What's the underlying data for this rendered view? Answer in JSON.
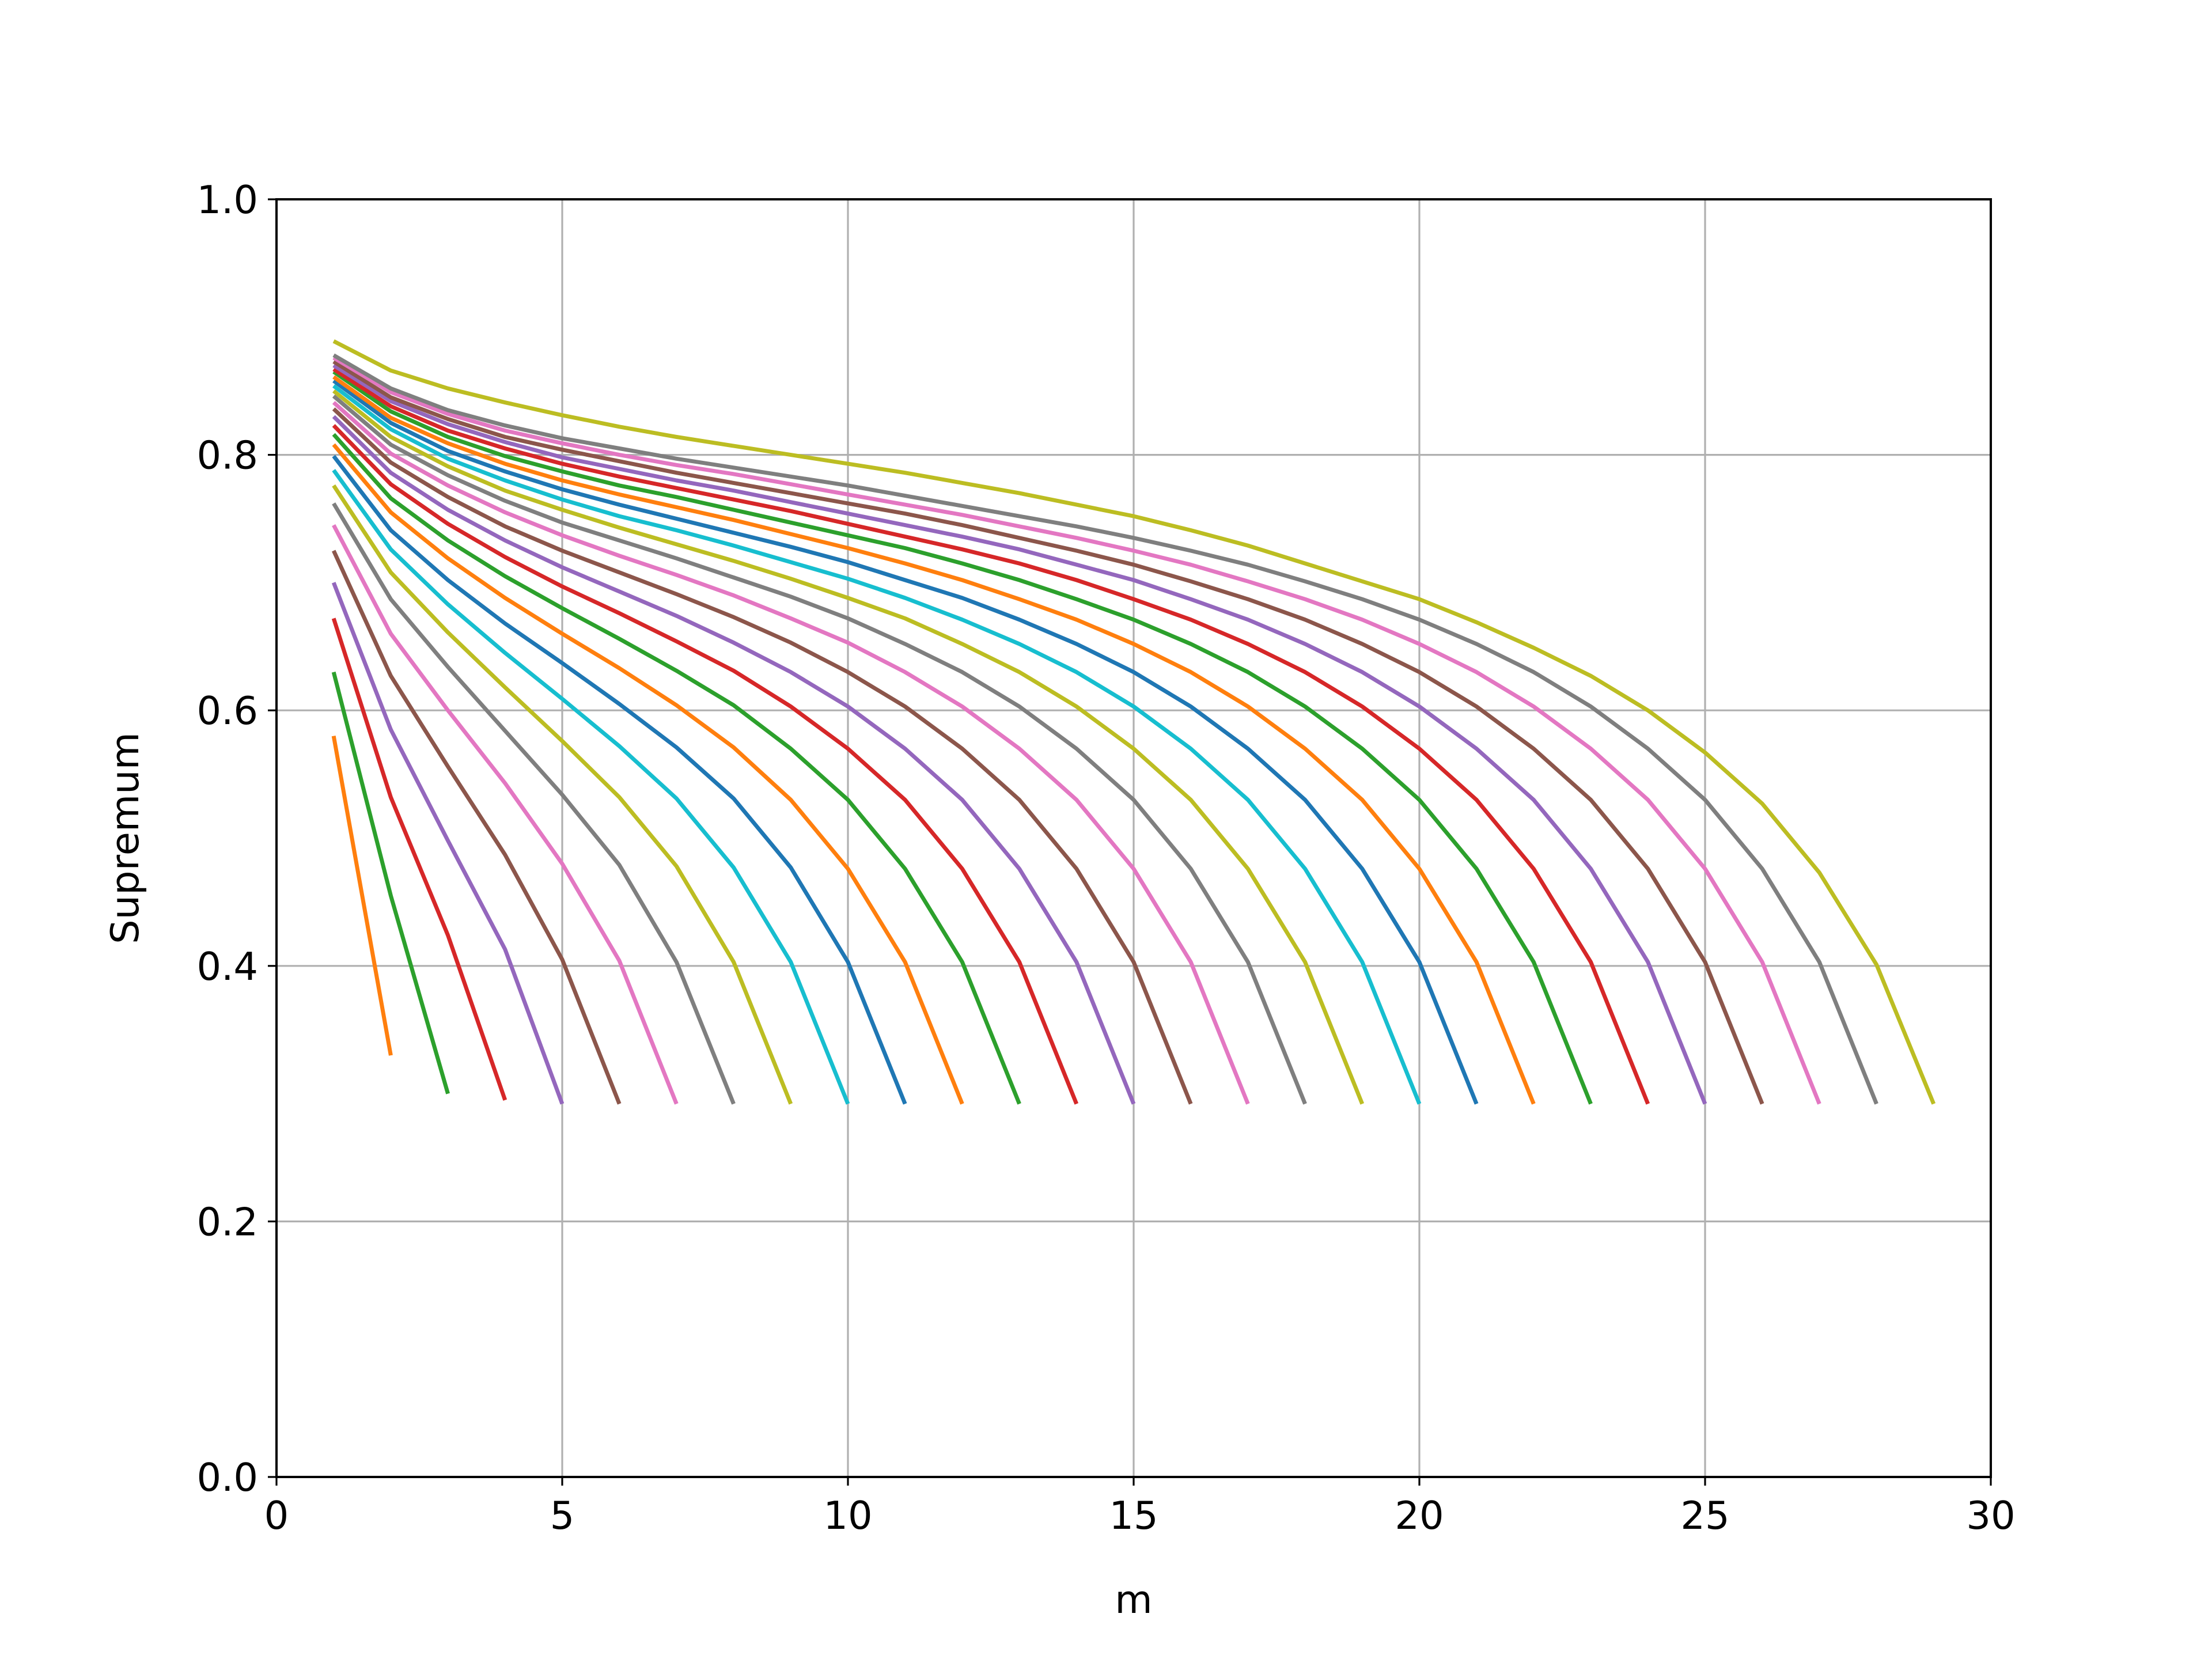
{
  "chart_data": {
    "type": "line",
    "title": "",
    "xlabel": "m",
    "ylabel": "Supremum",
    "xlim": [
      0,
      30
    ],
    "ylim": [
      0.0,
      1.0
    ],
    "xticks": [
      "0",
      "5",
      "10",
      "15",
      "20",
      "25",
      "30"
    ],
    "yticks": [
      "0.0",
      "0.2",
      "0.4",
      "0.6",
      "0.8",
      "1.0"
    ],
    "grid": true,
    "legend": "none",
    "colors": [
      "#1f77b4",
      "#ff7f0e",
      "#2ca02c",
      "#d62728",
      "#9467bd",
      "#8c564b",
      "#e377c2",
      "#7f7f7f",
      "#bcbd22",
      "#17becf"
    ],
    "series": [
      {
        "x": [
          1,
          2
        ],
        "y": [
          0.58,
          0.33
        ],
        "color": "#ff7f0e"
      },
      {
        "x": [
          1,
          2,
          3
        ],
        "y": [
          0.63,
          0.455,
          0.3
        ],
        "color": "#2ca02c"
      },
      {
        "x": [
          1,
          2,
          3,
          4
        ],
        "y": [
          0.672,
          0.532,
          0.424,
          0.295
        ],
        "color": "#d62728"
      },
      {
        "x": [
          1,
          2,
          3,
          4,
          5
        ],
        "y": [
          0.7,
          0.585,
          0.498,
          0.413,
          0.292
        ],
        "color": "#9467bd"
      },
      {
        "x": [
          1,
          2,
          3,
          4,
          5,
          6
        ],
        "y": [
          0.725,
          0.627,
          0.556,
          0.487,
          0.405,
          0.292
        ],
        "color": "#8c564b"
      },
      {
        "x": [
          1,
          2,
          3,
          4,
          5,
          6,
          7
        ],
        "y": [
          0.745,
          0.66,
          0.6,
          0.543,
          0.48,
          0.404,
          0.292
        ],
        "color": "#e377c2"
      },
      {
        "x": [
          1,
          2,
          3,
          4,
          5,
          6,
          7,
          8
        ],
        "y": [
          0.762,
          0.687,
          0.634,
          0.584,
          0.534,
          0.479,
          0.403,
          0.292
        ],
        "color": "#7f7f7f"
      },
      {
        "x": [
          1,
          2,
          3,
          4,
          5,
          6,
          7,
          8,
          9
        ],
        "y": [
          0.776,
          0.708,
          0.661,
          0.618,
          0.576,
          0.532,
          0.478,
          0.403,
          0.292
        ],
        "color": "#bcbd22"
      },
      {
        "x": [
          1,
          2,
          3,
          4,
          5,
          6,
          7,
          8,
          9,
          10
        ],
        "y": [
          0.788,
          0.726,
          0.683,
          0.645,
          0.609,
          0.572,
          0.531,
          0.477,
          0.403,
          0.292
        ],
        "color": "#17becf"
      },
      {
        "x": [
          1,
          2,
          3,
          4,
          5,
          6,
          7,
          8,
          9,
          10,
          11
        ],
        "y": [
          0.799,
          0.741,
          0.702,
          0.668,
          0.637,
          0.605,
          0.571,
          0.531,
          0.477,
          0.403,
          0.292
        ],
        "color": "#1f77b4"
      },
      {
        "x": [
          1,
          2,
          3,
          4,
          5,
          6,
          7,
          8,
          9,
          10,
          11,
          12
        ],
        "y": [
          0.808,
          0.755,
          0.719,
          0.688,
          0.66,
          0.633,
          0.604,
          0.571,
          0.53,
          0.476,
          0.403,
          0.292
        ],
        "color": "#ff7f0e"
      },
      {
        "x": [
          1,
          2,
          3,
          4,
          5,
          6,
          7,
          8,
          9,
          10,
          11,
          12,
          13
        ],
        "y": [
          0.816,
          0.766,
          0.733,
          0.705,
          0.68,
          0.656,
          0.631,
          0.604,
          0.57,
          0.53,
          0.476,
          0.403,
          0.292
        ],
        "color": "#2ca02c"
      },
      {
        "x": [
          1,
          2,
          3,
          4,
          5,
          6,
          7,
          8,
          9,
          10,
          11,
          12,
          13,
          14
        ],
        "y": [
          0.823,
          0.777,
          0.746,
          0.72,
          0.697,
          0.676,
          0.654,
          0.631,
          0.603,
          0.57,
          0.53,
          0.476,
          0.403,
          0.292
        ],
        "color": "#d62728"
      },
      {
        "x": [
          1,
          2,
          3,
          4,
          5,
          6,
          7,
          8,
          9,
          10,
          11,
          12,
          13,
          14,
          15
        ],
        "y": [
          0.83,
          0.786,
          0.757,
          0.733,
          0.712,
          0.693,
          0.674,
          0.653,
          0.63,
          0.603,
          0.57,
          0.53,
          0.476,
          0.403,
          0.292
        ],
        "color": "#9467bd"
      },
      {
        "x": [
          1,
          2,
          3,
          4,
          5,
          6,
          7,
          8,
          9,
          10,
          11,
          12,
          13,
          14,
          15,
          16
        ],
        "y": [
          0.836,
          0.794,
          0.767,
          0.744,
          0.725,
          0.708,
          0.691,
          0.673,
          0.653,
          0.63,
          0.603,
          0.57,
          0.53,
          0.476,
          0.403,
          0.292
        ],
        "color": "#8c564b"
      },
      {
        "x": [
          1,
          2,
          3,
          4,
          5,
          6,
          7,
          8,
          9,
          10,
          11,
          12,
          13,
          14,
          15,
          16,
          17
        ],
        "y": [
          0.841,
          0.801,
          0.776,
          0.755,
          0.737,
          0.721,
          0.706,
          0.69,
          0.672,
          0.653,
          0.63,
          0.603,
          0.57,
          0.53,
          0.476,
          0.403,
          0.292
        ],
        "color": "#e377c2"
      },
      {
        "x": [
          1,
          2,
          3,
          4,
          5,
          6,
          7,
          8,
          9,
          10,
          11,
          12,
          13,
          14,
          15,
          16,
          17,
          18
        ],
        "y": [
          0.846,
          0.808,
          0.784,
          0.764,
          0.747,
          0.733,
          0.719,
          0.704,
          0.689,
          0.672,
          0.652,
          0.63,
          0.603,
          0.57,
          0.53,
          0.476,
          0.403,
          0.292
        ],
        "color": "#7f7f7f"
      },
      {
        "x": [
          1,
          2,
          3,
          4,
          5,
          6,
          7,
          8,
          9,
          10,
          11,
          12,
          13,
          14,
          15,
          16,
          17,
          18,
          19
        ],
        "y": [
          0.85,
          0.814,
          0.791,
          0.772,
          0.757,
          0.743,
          0.73,
          0.717,
          0.703,
          0.688,
          0.672,
          0.652,
          0.63,
          0.603,
          0.57,
          0.53,
          0.476,
          0.403,
          0.292
        ],
        "color": "#bcbd22"
      },
      {
        "x": [
          1,
          2,
          3,
          4,
          5,
          6,
          7,
          8,
          9,
          10,
          11,
          12,
          13,
          14,
          15,
          16,
          17,
          18,
          19,
          20
        ],
        "y": [
          0.854,
          0.82,
          0.797,
          0.78,
          0.765,
          0.752,
          0.741,
          0.729,
          0.716,
          0.703,
          0.688,
          0.671,
          0.652,
          0.63,
          0.603,
          0.57,
          0.53,
          0.476,
          0.403,
          0.292
        ],
        "color": "#17becf"
      },
      {
        "x": [
          1,
          2,
          3,
          4,
          5,
          6,
          7,
          8,
          9,
          10,
          11,
          12,
          13,
          14,
          15,
          16,
          17,
          18,
          19,
          20,
          21
        ],
        "y": [
          0.858,
          0.825,
          0.803,
          0.787,
          0.773,
          0.761,
          0.75,
          0.739,
          0.728,
          0.716,
          0.702,
          0.688,
          0.671,
          0.652,
          0.63,
          0.603,
          0.57,
          0.53,
          0.476,
          0.403,
          0.292
        ],
        "color": "#1f77b4"
      },
      {
        "x": [
          1,
          2,
          3,
          4,
          5,
          6,
          7,
          8,
          9,
          10,
          11,
          12,
          13,
          14,
          15,
          16,
          17,
          18,
          19,
          20,
          21,
          22
        ],
        "y": [
          0.861,
          0.829,
          0.809,
          0.793,
          0.78,
          0.769,
          0.759,
          0.749,
          0.738,
          0.727,
          0.715,
          0.702,
          0.687,
          0.671,
          0.652,
          0.63,
          0.603,
          0.57,
          0.53,
          0.476,
          0.403,
          0.292
        ],
        "color": "#ff7f0e"
      },
      {
        "x": [
          1,
          2,
          3,
          4,
          5,
          6,
          7,
          8,
          9,
          10,
          11,
          12,
          13,
          14,
          15,
          16,
          17,
          18,
          19,
          20,
          21,
          22,
          23
        ],
        "y": [
          0.865,
          0.834,
          0.814,
          0.799,
          0.787,
          0.776,
          0.767,
          0.757,
          0.747,
          0.737,
          0.727,
          0.715,
          0.702,
          0.687,
          0.671,
          0.652,
          0.63,
          0.603,
          0.57,
          0.53,
          0.476,
          0.403,
          0.292
        ],
        "color": "#2ca02c"
      },
      {
        "x": [
          1,
          2,
          3,
          4,
          5,
          6,
          7,
          8,
          9,
          10,
          11,
          12,
          13,
          14,
          15,
          16,
          17,
          18,
          19,
          20,
          21,
          22,
          23,
          24
        ],
        "y": [
          0.867,
          0.838,
          0.819,
          0.805,
          0.793,
          0.783,
          0.774,
          0.765,
          0.756,
          0.746,
          0.736,
          0.726,
          0.715,
          0.702,
          0.687,
          0.671,
          0.652,
          0.63,
          0.603,
          0.57,
          0.53,
          0.476,
          0.403,
          0.292
        ],
        "color": "#d62728"
      },
      {
        "x": [
          1,
          2,
          3,
          4,
          5,
          6,
          7,
          8,
          9,
          10,
          11,
          12,
          13,
          14,
          15,
          16,
          17,
          18,
          19,
          20,
          21,
          22,
          23,
          24,
          25
        ],
        "y": [
          0.87,
          0.842,
          0.824,
          0.81,
          0.798,
          0.789,
          0.78,
          0.772,
          0.763,
          0.754,
          0.745,
          0.736,
          0.726,
          0.714,
          0.702,
          0.687,
          0.671,
          0.652,
          0.63,
          0.603,
          0.57,
          0.53,
          0.476,
          0.403,
          0.292
        ],
        "color": "#9467bd"
      },
      {
        "x": [
          1,
          2,
          3,
          4,
          5,
          6,
          7,
          8,
          9,
          10,
          11,
          12,
          13,
          14,
          15,
          16,
          17,
          18,
          19,
          20,
          21,
          22,
          23,
          24,
          25,
          26
        ],
        "y": [
          0.873,
          0.845,
          0.828,
          0.814,
          0.804,
          0.795,
          0.786,
          0.778,
          0.77,
          0.762,
          0.754,
          0.745,
          0.735,
          0.725,
          0.714,
          0.701,
          0.687,
          0.671,
          0.652,
          0.63,
          0.603,
          0.57,
          0.53,
          0.476,
          0.403,
          0.292
        ],
        "color": "#8c564b"
      },
      {
        "x": [
          1,
          2,
          3,
          4,
          5,
          6,
          7,
          8,
          9,
          10,
          11,
          12,
          13,
          14,
          15,
          16,
          17,
          18,
          19,
          20,
          21,
          22,
          23,
          24,
          25,
          26,
          27
        ],
        "y": [
          0.876,
          0.849,
          0.832,
          0.819,
          0.809,
          0.8,
          0.792,
          0.785,
          0.777,
          0.769,
          0.761,
          0.753,
          0.744,
          0.735,
          0.725,
          0.714,
          0.701,
          0.687,
          0.671,
          0.652,
          0.63,
          0.603,
          0.57,
          0.53,
          0.476,
          0.403,
          0.292
        ],
        "color": "#e377c2"
      },
      {
        "x": [
          1,
          2,
          3,
          4,
          5,
          6,
          7,
          8,
          9,
          10,
          11,
          12,
          13,
          14,
          15,
          16,
          17,
          18,
          19,
          20,
          21,
          22,
          23,
          24,
          25,
          26,
          27,
          28
        ],
        "y": [
          0.878,
          0.852,
          0.835,
          0.823,
          0.813,
          0.805,
          0.797,
          0.79,
          0.783,
          0.776,
          0.768,
          0.76,
          0.752,
          0.744,
          0.735,
          0.725,
          0.714,
          0.701,
          0.687,
          0.671,
          0.652,
          0.63,
          0.603,
          0.57,
          0.53,
          0.476,
          0.403,
          0.292
        ],
        "color": "#7f7f7f"
      },
      {
        "x": [
          1,
          2,
          3,
          4,
          5,
          6,
          7,
          8,
          9,
          10,
          11,
          12,
          13,
          14,
          15,
          16,
          17,
          18,
          19,
          20,
          21,
          22,
          23,
          24,
          25,
          26,
          27,
          28,
          29
        ],
        "y": [
          0.889,
          0.866,
          0.852,
          0.841,
          0.831,
          0.822,
          0.814,
          0.807,
          0.8,
          0.793,
          0.786,
          0.778,
          0.77,
          0.761,
          0.752,
          0.741,
          0.729,
          0.715,
          0.701,
          0.687,
          0.669,
          0.649,
          0.627,
          0.6,
          0.567,
          0.527,
          0.473,
          0.401,
          0.292
        ],
        "color": "#bcbd22"
      }
    ]
  }
}
